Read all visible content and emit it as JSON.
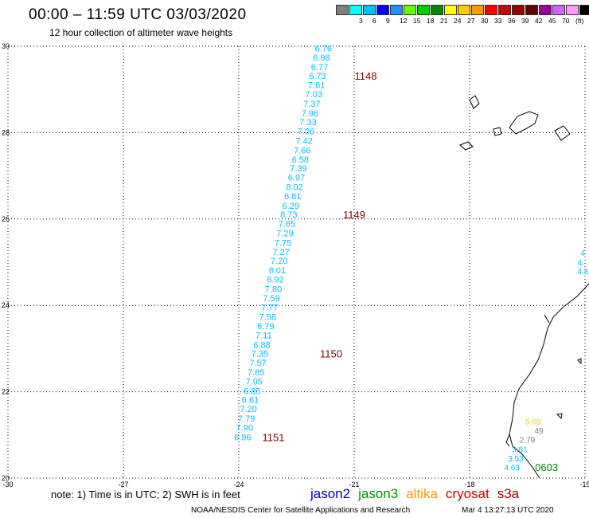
{
  "header": {
    "title": "00:00 – 11:59 UTC 03/03/2020",
    "subtitle": "12 hour collection of altimeter wave heights"
  },
  "legend": {
    "colors": [
      "#808080",
      "#00ffff",
      "#00bfff",
      "#0000ff",
      "#1e90ff",
      "#66ff00",
      "#00cc00",
      "#008800",
      "#ffff00",
      "#ffcc00",
      "#ff9900",
      "#ff0000",
      "#cc0000",
      "#990000",
      "#660000",
      "#990099",
      "#cc66ff",
      "#ff99ff",
      "#000000"
    ],
    "labels": [
      "3",
      "6",
      "9",
      "12",
      "15",
      "18",
      "21",
      "24",
      "27",
      "30",
      "33",
      "36",
      "39",
      "42",
      "45",
      "70",
      "(ft)"
    ],
    "label_positions": [
      1,
      2,
      3,
      4,
      5,
      6,
      7,
      8,
      9,
      10,
      11,
      12,
      13,
      14,
      15,
      16,
      17
    ]
  },
  "map": {
    "lon_range": [
      -30,
      -15
    ],
    "lat_range": [
      20,
      30
    ],
    "x_ticks": [
      "-30",
      "-27",
      "-24",
      "-21",
      "-18",
      "-15"
    ],
    "x_tick_values": [
      -30,
      -27,
      -24,
      -21,
      -18,
      -15
    ],
    "y_ticks": [
      "20",
      "22",
      "24",
      "26",
      "28",
      "30"
    ],
    "y_tick_values": [
      20,
      22,
      24,
      26,
      28,
      30
    ],
    "track_color": "#00bfff",
    "time_color": "#800000",
    "track": [
      {
        "lon": -21.8,
        "lat": 29.88,
        "v": "6.76"
      },
      {
        "lon": -21.85,
        "lat": 29.67,
        "v": "6.98"
      },
      {
        "lon": -21.9,
        "lat": 29.45,
        "v": "6.77"
      },
      {
        "lon": -21.95,
        "lat": 29.24,
        "v": "6.73"
      },
      {
        "lon": -21.98,
        "lat": 29.03,
        "v": "7.61"
      },
      {
        "lon": -22.05,
        "lat": 28.82,
        "v": "7.03"
      },
      {
        "lon": -22.1,
        "lat": 28.6,
        "v": "7.37"
      },
      {
        "lon": -22.15,
        "lat": 28.38,
        "v": "7.96"
      },
      {
        "lon": -22.2,
        "lat": 28.17,
        "v": "7.33"
      },
      {
        "lon": -22.25,
        "lat": 27.96,
        "v": "7.06"
      },
      {
        "lon": -22.3,
        "lat": 27.74,
        "v": "7.42"
      },
      {
        "lon": -22.35,
        "lat": 27.52,
        "v": "7.66"
      },
      {
        "lon": -22.4,
        "lat": 27.31,
        "v": "6.58"
      },
      {
        "lon": -22.45,
        "lat": 27.1,
        "v": "7.39"
      },
      {
        "lon": -22.5,
        "lat": 26.89,
        "v": "6.97"
      },
      {
        "lon": -22.55,
        "lat": 26.67,
        "v": "8.02"
      },
      {
        "lon": -22.6,
        "lat": 26.46,
        "v": "6.81"
      },
      {
        "lon": -22.65,
        "lat": 26.24,
        "v": "6.29"
      },
      {
        "lon": -22.7,
        "lat": 26.03,
        "v": "8.73"
      },
      {
        "lon": -22.75,
        "lat": 25.82,
        "v": "7.65"
      },
      {
        "lon": -22.8,
        "lat": 25.6,
        "v": "7.29"
      },
      {
        "lon": -22.85,
        "lat": 25.38,
        "v": "7.75"
      },
      {
        "lon": -22.9,
        "lat": 25.17,
        "v": "7.27"
      },
      {
        "lon": -22.95,
        "lat": 24.96,
        "v": "7.20"
      },
      {
        "lon": -23.0,
        "lat": 24.74,
        "v": "8.01"
      },
      {
        "lon": -23.05,
        "lat": 24.53,
        "v": "6.92"
      },
      {
        "lon": -23.1,
        "lat": 24.31,
        "v": "7.80"
      },
      {
        "lon": -23.15,
        "lat": 24.1,
        "v": "7.59"
      },
      {
        "lon": -23.2,
        "lat": 23.88,
        "v": "7.77"
      },
      {
        "lon": -23.25,
        "lat": 23.66,
        "v": "7.58"
      },
      {
        "lon": -23.3,
        "lat": 23.45,
        "v": "6.79"
      },
      {
        "lon": -23.35,
        "lat": 23.24,
        "v": "7.11"
      },
      {
        "lon": -23.4,
        "lat": 23.02,
        "v": "6.88"
      },
      {
        "lon": -23.45,
        "lat": 22.81,
        "v": "7.35"
      },
      {
        "lon": -23.5,
        "lat": 22.6,
        "v": "7.57"
      },
      {
        "lon": -23.55,
        "lat": 22.38,
        "v": "7.85"
      },
      {
        "lon": -23.6,
        "lat": 22.17,
        "v": "7.95"
      },
      {
        "lon": -23.65,
        "lat": 21.95,
        "v": "6.85"
      },
      {
        "lon": -23.7,
        "lat": 21.74,
        "v": "6.61"
      },
      {
        "lon": -23.75,
        "lat": 21.53,
        "v": "7.20"
      },
      {
        "lon": -23.8,
        "lat": 21.31,
        "v": "7.79"
      },
      {
        "lon": -23.85,
        "lat": 21.1,
        "v": "7.90"
      },
      {
        "lon": -23.9,
        "lat": 20.88,
        "v": "6.96"
      }
    ],
    "time_labels": [
      {
        "lon": -20.7,
        "lat": 29.24,
        "t": "1148"
      },
      {
        "lon": -21.0,
        "lat": 26.03,
        "t": "1149"
      },
      {
        "lon": -21.6,
        "lat": 22.81,
        "t": "1150"
      },
      {
        "lon": -23.1,
        "lat": 20.88,
        "t": "1151"
      }
    ],
    "coast_track": [
      {
        "lon": -16.35,
        "lat": 21.25,
        "v": "5.69",
        "c": "#ffcc00"
      },
      {
        "lon": -16.2,
        "lat": 21.03,
        "v": "49",
        "c": "#808080"
      },
      {
        "lon": -16.5,
        "lat": 20.82,
        "v": "2.79",
        "c": "#808080"
      },
      {
        "lon": -16.7,
        "lat": 20.6,
        "v": "3.81",
        "c": "#00bfff"
      },
      {
        "lon": -16.8,
        "lat": 20.39,
        "v": "3.53",
        "c": "#00bfff"
      },
      {
        "lon": -16.9,
        "lat": 20.18,
        "v": "4.63",
        "c": "#00bfff"
      }
    ],
    "coast_time": {
      "lon": -16.0,
      "lat": 20.18,
      "t": "0603",
      "c": "#008800"
    },
    "edge_labels": [
      {
        "lon": -15.12,
        "lat": 25.15,
        "v": "4",
        "c": "#00bfff"
      },
      {
        "lon": -15.2,
        "lat": 24.93,
        "v": "4.",
        "c": "#00bfff"
      },
      {
        "lon": -15.2,
        "lat": 24.72,
        "v": "4.8",
        "c": "#00bfff"
      }
    ]
  },
  "footer": {
    "note": "note:  1) Time is in UTC;  2) SWH is in feet",
    "center": "NOAA/NESDIS Center for Satellite Applications and Research",
    "timestamp": "Mar  4 13:27:13 UTC 2020",
    "satellites": [
      {
        "name": "jason2",
        "color": "#0000cc"
      },
      {
        "name": "jason3",
        "color": "#009900"
      },
      {
        "name": "altika",
        "color": "#ff9900"
      },
      {
        "name": "cryosat",
        "color": "#cc0000"
      },
      {
        "name": "s3a",
        "color": "#990000"
      }
    ]
  }
}
